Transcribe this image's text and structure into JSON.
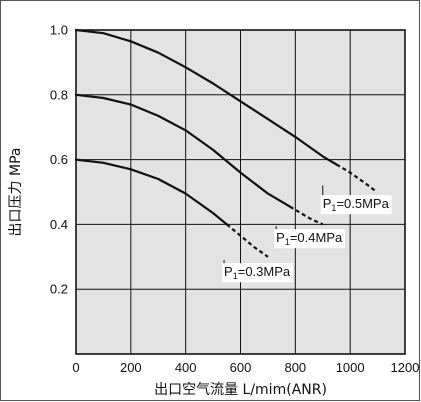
{
  "chart_data": {
    "type": "line",
    "title": "",
    "xlabel": "出口空气流量 L/mim(ANR)",
    "ylabel": "出口压力 MPa",
    "xlim": [
      0,
      1200
    ],
    "ylim": [
      0,
      1.0
    ],
    "xticks": [
      0,
      200,
      400,
      600,
      800,
      1000,
      1200
    ],
    "xtick_labels": [
      "0",
      "200",
      "400",
      "600",
      "800",
      "1000",
      "1200"
    ],
    "yticks": [
      0.2,
      0.4,
      0.6,
      0.8,
      1.0
    ],
    "ytick_labels": [
      "0.2",
      "0.4",
      "0.6",
      "0.8",
      "1.0"
    ],
    "grid": true,
    "background": "#e3e3e3",
    "line_color": "#111111",
    "series": [
      {
        "name": "P₁=0.5MPa",
        "solid": [
          [
            0,
            1.0
          ],
          [
            100,
            0.99
          ],
          [
            200,
            0.965
          ],
          [
            300,
            0.93
          ],
          [
            400,
            0.885
          ],
          [
            500,
            0.835
          ],
          [
            600,
            0.78
          ],
          [
            700,
            0.725
          ],
          [
            800,
            0.67
          ],
          [
            900,
            0.61
          ],
          [
            950,
            0.585
          ]
        ],
        "dashed": [
          [
            950,
            0.585
          ],
          [
            1000,
            0.56
          ],
          [
            1050,
            0.53
          ],
          [
            1090,
            0.505
          ]
        ]
      },
      {
        "name": "P₁=0.4MPa",
        "solid": [
          [
            0,
            0.8
          ],
          [
            100,
            0.79
          ],
          [
            200,
            0.77
          ],
          [
            300,
            0.735
          ],
          [
            400,
            0.69
          ],
          [
            500,
            0.63
          ],
          [
            600,
            0.56
          ],
          [
            700,
            0.495
          ],
          [
            780,
            0.455
          ]
        ],
        "dashed": [
          [
            780,
            0.455
          ],
          [
            820,
            0.435
          ],
          [
            860,
            0.415
          ],
          [
            900,
            0.4
          ]
        ]
      },
      {
        "name": "P₁=0.3MPa",
        "solid": [
          [
            0,
            0.6
          ],
          [
            100,
            0.59
          ],
          [
            200,
            0.57
          ],
          [
            300,
            0.54
          ],
          [
            400,
            0.495
          ],
          [
            500,
            0.435
          ],
          [
            550,
            0.4
          ]
        ],
        "dashed": [
          [
            550,
            0.4
          ],
          [
            600,
            0.365
          ],
          [
            650,
            0.33
          ],
          [
            700,
            0.3
          ]
        ]
      }
    ],
    "annotations": [
      {
        "text_main": "P",
        "text_sub": "1",
        "text_rest": "=0.5MPa",
        "x": 900,
        "y": 0.45
      },
      {
        "text_main": "P",
        "text_sub": "1",
        "text_rest": "=0.4MPa",
        "x": 730,
        "y": 0.345
      },
      {
        "text_main": "P",
        "text_sub": "1",
        "text_rest": "=0.3MPa",
        "x": 540,
        "y": 0.24
      }
    ],
    "leader_lines": [
      {
        "from": [
          900,
          0.485
        ],
        "to": [
          900,
          0.52
        ]
      },
      {
        "from": [
          730,
          0.37
        ],
        "to": [
          730,
          0.395
        ]
      },
      {
        "from": [
          540,
          0.27
        ],
        "to": [
          540,
          0.29
        ]
      }
    ]
  }
}
